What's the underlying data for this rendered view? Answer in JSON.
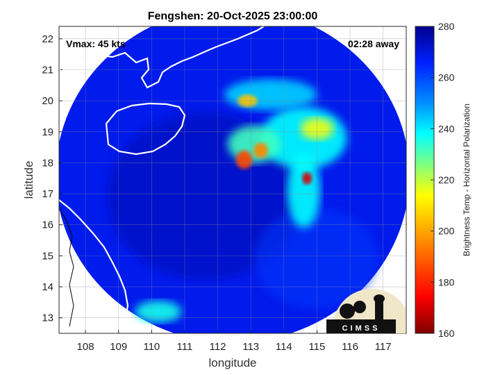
{
  "chart_data": {
    "type": "heatmap",
    "title": "Fengshen: 20-Oct-2025 23:00:00",
    "xlabel": "longitude",
    "ylabel": "latitude",
    "xlim": [
      107.2,
      117.7
    ],
    "ylim": [
      12.5,
      22.4
    ],
    "xticks": [
      "108",
      "109",
      "110",
      "111",
      "112",
      "113",
      "114",
      "115",
      "116",
      "117"
    ],
    "yticks": [
      "13",
      "14",
      "15",
      "16",
      "17",
      "18",
      "19",
      "20",
      "21",
      "22"
    ],
    "grid": true,
    "colorbar": {
      "label": "Brightness Temp - Horizontal Polarization",
      "range": [
        160,
        280
      ],
      "ticks": [
        "160",
        "180",
        "200",
        "220",
        "240",
        "260",
        "280"
      ]
    },
    "annotations": {
      "vmax": "Vmax: 45 kts",
      "time_away": "02:28 away"
    },
    "logo_text": "CIMSS",
    "swath": {
      "center_lon": 112.45,
      "center_lat": 17.6,
      "radius_lon": 5.35,
      "radius_lat": 5.4
    },
    "features": [
      {
        "lon": 114.6,
        "lat": 18.8,
        "rx": 1.3,
        "ry": 1.0,
        "tb": 238
      },
      {
        "lon": 113.1,
        "lat": 18.6,
        "rx": 0.8,
        "ry": 0.6,
        "tb": 232
      },
      {
        "lon": 113.6,
        "lat": 20.2,
        "rx": 1.4,
        "ry": 0.5,
        "tb": 243
      },
      {
        "lon": 114.6,
        "lat": 17.1,
        "rx": 0.5,
        "ry": 1.2,
        "tb": 238
      },
      {
        "lon": 112.8,
        "lat": 18.1,
        "rx": 0.25,
        "ry": 0.3,
        "tb": 185
      },
      {
        "lon": 113.3,
        "lat": 18.4,
        "rx": 0.22,
        "ry": 0.25,
        "tb": 195
      },
      {
        "lon": 114.7,
        "lat": 17.5,
        "rx": 0.15,
        "ry": 0.2,
        "tb": 170
      },
      {
        "lon": 115.0,
        "lat": 19.1,
        "rx": 0.5,
        "ry": 0.35,
        "tb": 215
      },
      {
        "lon": 112.9,
        "lat": 20.0,
        "rx": 0.3,
        "ry": 0.2,
        "tb": 205
      },
      {
        "lon": 110.2,
        "lat": 13.2,
        "rx": 0.7,
        "ry": 0.35,
        "tb": 236
      }
    ]
  }
}
